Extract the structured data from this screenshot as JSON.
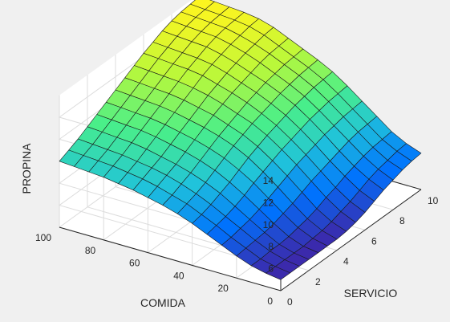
{
  "chart_data": {
    "type": "surface",
    "xlabel": "SERVICIO",
    "ylabel": "COMIDA",
    "zlabel": "PROPINA",
    "xlim": [
      0,
      10
    ],
    "ylim": [
      0,
      100
    ],
    "zlim": [
      4,
      16
    ],
    "x_ticks": [
      "0",
      "2",
      "4",
      "6",
      "8",
      "10"
    ],
    "y_ticks": [
      "0",
      "20",
      "40",
      "60",
      "80",
      "100"
    ],
    "z_ticks": [
      "6",
      "8",
      "10",
      "12",
      "14"
    ],
    "colormap": [
      "#3e26a8",
      "#0072fd",
      "#1fc2dc",
      "#49ef8a",
      "#b8f83b",
      "#fff51f"
    ],
    "grid": true,
    "x": [
      0,
      0.667,
      1.333,
      2,
      2.667,
      3.333,
      4,
      4.667,
      5.333,
      6,
      6.667,
      7.333,
      8,
      8.667,
      9.333,
      10
    ],
    "y": [
      0,
      6.67,
      13.33,
      20,
      26.67,
      33.33,
      40,
      46.67,
      53.33,
      60,
      66.67,
      73.33,
      80,
      86.67,
      93.33,
      100
    ],
    "z": [
      [
        5.0,
        5.0,
        5.0,
        5.0,
        5.0,
        5.0,
        5.0,
        5.1,
        5.3,
        5.6,
        6.0,
        6.4,
        6.7,
        7.0,
        7.2,
        7.3
      ],
      [
        5.2,
        5.2,
        5.2,
        5.2,
        5.2,
        5.3,
        5.4,
        5.6,
        5.9,
        6.2,
        6.6,
        7.0,
        7.3,
        7.5,
        7.7,
        7.8
      ],
      [
        5.5,
        5.5,
        5.6,
        5.6,
        5.7,
        5.9,
        6.1,
        6.4,
        6.8,
        7.1,
        7.5,
        7.8,
        8.1,
        8.3,
        8.4,
        8.5
      ],
      [
        6.0,
        6.1,
        6.2,
        6.3,
        6.5,
        6.8,
        7.1,
        7.5,
        7.9,
        8.2,
        8.5,
        8.8,
        9.1,
        9.3,
        9.4,
        9.5
      ],
      [
        6.6,
        6.7,
        6.9,
        7.1,
        7.4,
        7.8,
        8.2,
        8.6,
        9.0,
        9.3,
        9.6,
        9.9,
        10.1,
        10.3,
        10.4,
        10.5
      ],
      [
        7.2,
        7.4,
        7.6,
        7.9,
        8.3,
        8.8,
        9.2,
        9.6,
        10.0,
        10.3,
        10.6,
        10.9,
        11.1,
        11.3,
        11.4,
        11.5
      ],
      [
        7.8,
        8.0,
        8.3,
        8.7,
        9.1,
        9.6,
        10.1,
        10.5,
        10.9,
        11.2,
        11.5,
        11.8,
        12.0,
        12.2,
        12.3,
        12.4
      ],
      [
        8.3,
        8.6,
        8.9,
        9.3,
        9.8,
        10.3,
        10.8,
        11.2,
        11.6,
        11.9,
        12.2,
        12.5,
        12.7,
        12.9,
        13.0,
        13.1
      ],
      [
        8.7,
        9.0,
        9.4,
        9.8,
        10.3,
        10.8,
        11.3,
        11.7,
        12.1,
        12.5,
        12.8,
        13.1,
        13.3,
        13.5,
        13.6,
        13.7
      ],
      [
        9.0,
        9.4,
        9.8,
        10.2,
        10.7,
        11.2,
        11.7,
        12.2,
        12.6,
        13.0,
        13.3,
        13.6,
        13.9,
        14.1,
        14.2,
        14.3
      ],
      [
        9.3,
        9.7,
        10.1,
        10.5,
        11.0,
        11.5,
        12.0,
        12.5,
        13.0,
        13.4,
        13.8,
        14.1,
        14.4,
        14.6,
        14.8,
        14.9
      ],
      [
        9.5,
        9.9,
        10.3,
        10.8,
        11.3,
        11.8,
        12.3,
        12.8,
        13.3,
        13.8,
        14.2,
        14.5,
        14.8,
        15.0,
        15.2,
        15.3
      ],
      [
        9.7,
        10.1,
        10.5,
        11.0,
        11.5,
        12.0,
        12.5,
        13.0,
        13.5,
        14.0,
        14.4,
        14.8,
        15.1,
        15.3,
        15.4,
        15.5
      ],
      [
        9.8,
        10.2,
        10.6,
        11.1,
        11.6,
        12.1,
        12.6,
        13.1,
        13.6,
        14.1,
        14.5,
        14.9,
        15.2,
        15.4,
        15.5,
        15.6
      ],
      [
        9.9,
        10.3,
        10.7,
        11.2,
        11.7,
        12.2,
        12.7,
        13.2,
        13.7,
        14.2,
        14.6,
        15.0,
        15.3,
        15.5,
        15.6,
        15.7
      ],
      [
        10.0,
        10.4,
        10.8,
        11.3,
        11.8,
        12.3,
        12.8,
        13.3,
        13.8,
        14.3,
        14.7,
        15.1,
        15.4,
        15.6,
        15.7,
        15.8
      ]
    ]
  }
}
